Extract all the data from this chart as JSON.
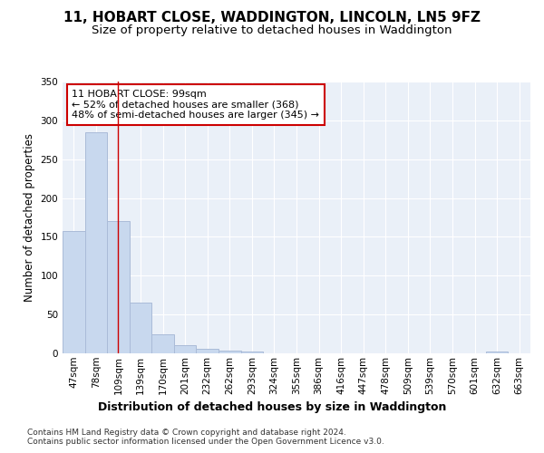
{
  "title_line1": "11, HOBART CLOSE, WADDINGTON, LINCOLN, LN5 9FZ",
  "title_line2": "Size of property relative to detached houses in Waddington",
  "xlabel": "Distribution of detached houses by size in Waddington",
  "ylabel": "Number of detached properties",
  "bin_labels": [
    "47sqm",
    "78sqm",
    "109sqm",
    "139sqm",
    "170sqm",
    "201sqm",
    "232sqm",
    "262sqm",
    "293sqm",
    "324sqm",
    "355sqm",
    "386sqm",
    "416sqm",
    "447sqm",
    "478sqm",
    "509sqm",
    "539sqm",
    "570sqm",
    "601sqm",
    "632sqm",
    "663sqm"
  ],
  "bar_heights": [
    157,
    285,
    170,
    65,
    25,
    10,
    6,
    3,
    2,
    0,
    0,
    0,
    0,
    0,
    0,
    0,
    0,
    0,
    0,
    2,
    0
  ],
  "bar_color": "#c8d8ee",
  "bar_edge_color": "#aabbd8",
  "vline_x": 2,
  "vline_color": "#cc0000",
  "annotation_text": "11 HOBART CLOSE: 99sqm\n← 52% of detached houses are smaller (368)\n48% of semi-detached houses are larger (345) →",
  "annotation_box_facecolor": "#ffffff",
  "annotation_box_edgecolor": "#cc0000",
  "ylim": [
    0,
    350
  ],
  "yticks": [
    0,
    50,
    100,
    150,
    200,
    250,
    300,
    350
  ],
  "axes_facecolor": "#eaf0f8",
  "fig_facecolor": "#ffffff",
  "footer_text": "Contains HM Land Registry data © Crown copyright and database right 2024.\nContains public sector information licensed under the Open Government Licence v3.0.",
  "title_fontsize": 11,
  "subtitle_fontsize": 9.5,
  "ylabel_fontsize": 8.5,
  "xlabel_fontsize": 9,
  "tick_fontsize": 7.5,
  "annotation_fontsize": 8,
  "footer_fontsize": 6.5
}
